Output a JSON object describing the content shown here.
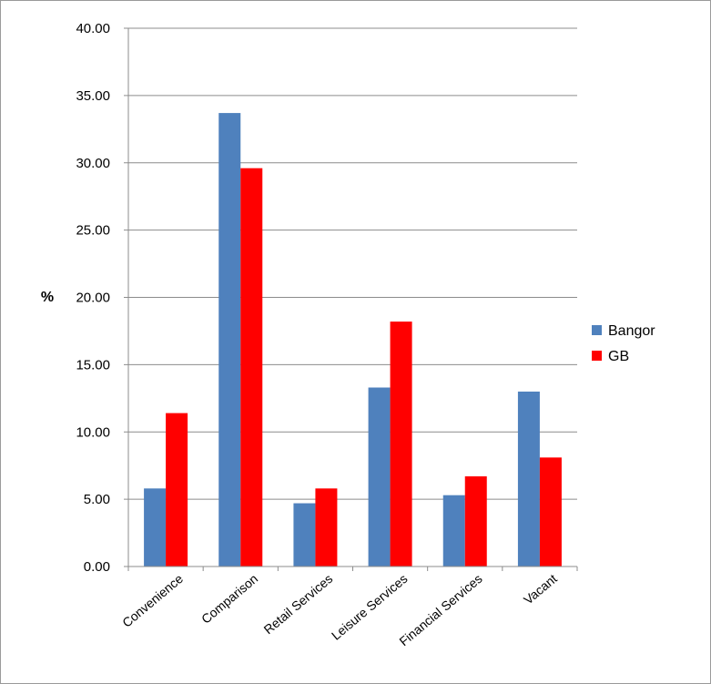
{
  "chart_data": {
    "type": "bar",
    "title": "",
    "xlabel": "",
    "ylabel": "%",
    "ylim": [
      0,
      40
    ],
    "yticks": [
      "0.00",
      "5.00",
      "10.00",
      "15.00",
      "20.00",
      "25.00",
      "30.00",
      "35.00",
      "40.00"
    ],
    "grid": true,
    "legend_position": "right",
    "categories": [
      "Convenience",
      "Comparison",
      "Retail Services",
      "Leisure Services",
      "Financial Services",
      "Vacant"
    ],
    "series": [
      {
        "name": "Bangor",
        "color": "#4f81bd",
        "values": [
          5.8,
          33.7,
          4.7,
          13.3,
          5.3,
          13.0
        ]
      },
      {
        "name": "GB",
        "color": "#ff0000",
        "values": [
          11.4,
          29.6,
          5.8,
          18.2,
          6.7,
          8.1
        ]
      }
    ]
  }
}
